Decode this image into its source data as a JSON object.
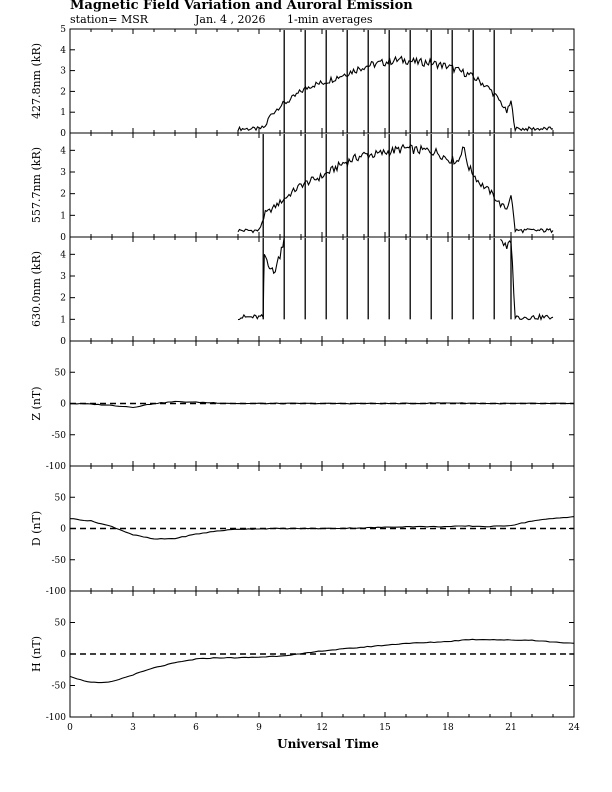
{
  "header": {
    "title": "Magnetic Field Variation and Auroral Emission",
    "station": "station= MSR",
    "date": "Jan. 4 , 2026",
    "averaging": "1-min averages"
  },
  "chart_data": [
    {
      "type": "line",
      "ylabel": "427.8nm (kR)",
      "ylim": [
        0,
        5
      ],
      "yticks": [
        "0",
        "1",
        "2",
        "3",
        "4",
        "5"
      ],
      "xlim": [
        0,
        24
      ],
      "series": [
        {
          "x": [
            8.0,
            9.0,
            9.3,
            9.5,
            10.0,
            10.5,
            11.0,
            11.5,
            12.0,
            12.5,
            13.0,
            13.5,
            14.0,
            14.5,
            15.0,
            15.5,
            16.0,
            16.5,
            17.0,
            17.5,
            18.0,
            18.5,
            19.0,
            19.5,
            20.0,
            20.5,
            20.8,
            21.0,
            21.2,
            22.0,
            23.0
          ],
          "y": [
            0.2,
            0.2,
            0.3,
            0.8,
            1.3,
            1.6,
            2.0,
            2.3,
            2.4,
            2.6,
            2.8,
            3.0,
            3.2,
            3.3,
            3.4,
            3.5,
            3.5,
            3.4,
            3.4,
            3.3,
            3.2,
            3.0,
            2.8,
            2.5,
            2.1,
            1.5,
            1.0,
            1.5,
            0.2,
            0.2,
            0.2
          ]
        }
      ],
      "spikes": [
        10.2,
        11.2,
        12.2,
        13.2,
        14.2,
        15.2,
        16.2,
        17.2,
        18.2,
        19.2,
        20.2
      ]
    },
    {
      "type": "line",
      "ylabel": "557.7nm (kR)",
      "ylim": [
        0,
        4.8
      ],
      "yticks": [
        "0",
        "1",
        "2",
        "3",
        "4"
      ],
      "xlim": [
        0,
        24
      ],
      "series": [
        {
          "x": [
            8.0,
            9.0,
            9.3,
            9.5,
            10.0,
            10.5,
            11.0,
            11.5,
            12.0,
            12.5,
            13.0,
            13.5,
            14.0,
            14.5,
            15.0,
            15.5,
            16.0,
            16.5,
            17.0,
            17.5,
            18.0,
            18.5,
            18.7,
            19.0,
            19.5,
            20.0,
            20.5,
            20.8,
            21.0,
            21.2,
            22.0,
            23.0
          ],
          "y": [
            0.3,
            0.3,
            1.1,
            1.2,
            1.6,
            2.0,
            2.4,
            2.6,
            2.8,
            3.1,
            3.4,
            3.6,
            3.8,
            3.8,
            3.9,
            4.0,
            4.1,
            4.0,
            4.0,
            3.9,
            3.6,
            3.5,
            4.2,
            3.2,
            2.5,
            2.1,
            1.5,
            1.3,
            2.0,
            0.3,
            0.3,
            0.3
          ]
        }
      ],
      "spikes": [
        9.2,
        10.2,
        11.2,
        12.2,
        13.2,
        14.2,
        15.2,
        16.2,
        17.2,
        18.2,
        19.2,
        20.2
      ]
    },
    {
      "type": "line",
      "ylabel": "630.0nm (kR)",
      "ylim": [
        0,
        4.8
      ],
      "yticks": [
        "0",
        "1",
        "2",
        "3",
        "4"
      ],
      "xlim": [
        0,
        24
      ],
      "series": [
        {
          "x": [
            8.0,
            9.2,
            9.25,
            9.5,
            9.7,
            10.0,
            10.2
          ],
          "y": [
            1.1,
            1.1,
            4.0,
            3.5,
            3.1,
            4.0,
            4.8
          ]
        },
        {
          "x": [
            20.5,
            20.8,
            21.0,
            21.2,
            22.0,
            23.0
          ],
          "y": [
            4.8,
            4.2,
            4.7,
            1.1,
            1.1,
            1.1
          ]
        }
      ],
      "spikes": [
        9.2,
        10.2,
        11.2,
        12.2,
        13.2,
        14.2,
        15.2,
        16.2,
        17.2,
        18.2,
        19.2,
        20.2,
        21.0
      ],
      "spike_floor": 1.0
    },
    {
      "type": "line",
      "ylabel": "Z (nT)",
      "ylim": [
        -100,
        100
      ],
      "yticks": [
        "-100",
        "-50",
        "0",
        "50"
      ],
      "xlim": [
        0,
        24
      ],
      "reference_line": 0,
      "series": [
        {
          "x": [
            0,
            1,
            2,
            3,
            4,
            5,
            6,
            8,
            10,
            12,
            14,
            16,
            18,
            20,
            22,
            24
          ],
          "y": [
            0,
            -1,
            -3,
            -6,
            0,
            3,
            2,
            0,
            0,
            0,
            0,
            0,
            1,
            0,
            0,
            0
          ]
        }
      ]
    },
    {
      "type": "line",
      "ylabel": "D (nT)",
      "ylim": [
        -100,
        100
      ],
      "yticks": [
        "-100",
        "-50",
        "0",
        "50"
      ],
      "xlim": [
        0,
        24
      ],
      "reference_line": 0,
      "series": [
        {
          "x": [
            0,
            1,
            2,
            3,
            4,
            5,
            6,
            7,
            8,
            10,
            12,
            14,
            16,
            18,
            19,
            20,
            21,
            22,
            23,
            24
          ],
          "y": [
            16,
            12,
            3,
            -10,
            -17,
            -16,
            -9,
            -4,
            -1,
            0,
            0,
            1,
            3,
            3,
            4,
            3,
            5,
            12,
            16,
            19
          ]
        }
      ]
    },
    {
      "type": "line",
      "ylabel": "H (nT)",
      "ylim": [
        -100,
        100
      ],
      "yticks": [
        "-100",
        "-50",
        "0",
        "50"
      ],
      "xlim": [
        0,
        24
      ],
      "reference_line": 0,
      "series": [
        {
          "x": [
            0,
            0.5,
            1,
            1.5,
            2,
            3,
            4,
            5,
            6,
            7,
            8,
            9,
            10,
            11,
            12,
            13,
            14,
            15,
            16,
            17,
            18,
            19,
            20,
            21,
            22,
            23,
            24
          ],
          "y": [
            -35,
            -41,
            -45,
            -46,
            -44,
            -33,
            -22,
            -14,
            -8,
            -6,
            -6,
            -5,
            -3,
            0,
            5,
            8,
            11,
            14,
            17,
            18,
            20,
            23,
            23,
            22,
            22,
            19,
            17
          ]
        }
      ]
    }
  ],
  "x_axis": {
    "label": "Universal Time",
    "ticks": [
      "0",
      "3",
      "6",
      "9",
      "12",
      "15",
      "18",
      "21",
      "24"
    ]
  }
}
